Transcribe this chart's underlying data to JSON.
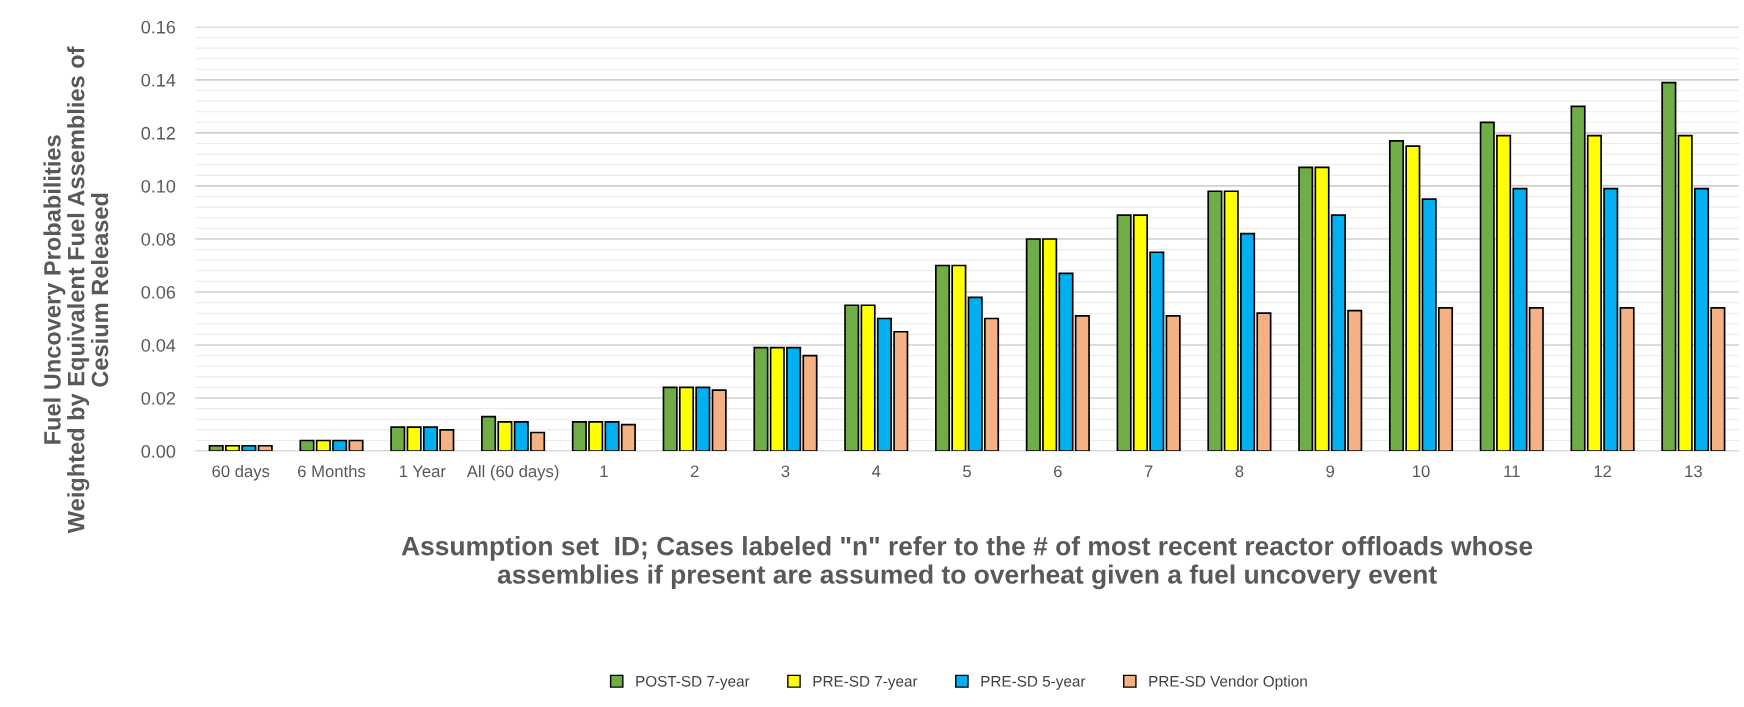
{
  "chart_data": {
    "type": "bar",
    "xlabel": "Assumption set  ID; Cases labeled \"n\" refer to the # of most recent reactor offloads whose\nassemblies if present are assumed to overheat given a fuel uncovery event",
    "ylabel": "Fuel Uncovery Probabilities\nWeighted by Equivalent Fuel Assemblies of\nCesium Released",
    "categories": [
      "60 days",
      "6 Months",
      "1 Year",
      "All (60 days)",
      "1",
      "2",
      "3",
      "4",
      "5",
      "6",
      "7",
      "8",
      "9",
      "10",
      "11",
      "12",
      "13"
    ],
    "series": [
      {
        "name": "POST-SD 7-year",
        "color": "#70ad47",
        "values": [
          0.002,
          0.004,
          0.009,
          0.013,
          0.011,
          0.024,
          0.039,
          0.055,
          0.07,
          0.08,
          0.089,
          0.098,
          0.107,
          0.117,
          0.124,
          0.13,
          0.139
        ]
      },
      {
        "name": "PRE-SD 7-year",
        "color": "#ffff00",
        "values": [
          0.002,
          0.004,
          0.009,
          0.011,
          0.011,
          0.024,
          0.039,
          0.055,
          0.07,
          0.08,
          0.089,
          0.098,
          0.107,
          0.115,
          0.119,
          0.119,
          0.119
        ]
      },
      {
        "name": "PRE-SD 5-year",
        "color": "#00b0f0",
        "values": [
          0.002,
          0.004,
          0.009,
          0.011,
          0.011,
          0.024,
          0.039,
          0.05,
          0.058,
          0.067,
          0.075,
          0.082,
          0.089,
          0.095,
          0.099,
          0.099,
          0.099
        ]
      },
      {
        "name": "PRE-SD Vendor Option",
        "color": "#f4b183",
        "values": [
          0.002,
          0.004,
          0.008,
          0.007,
          0.01,
          0.023,
          0.036,
          0.045,
          0.05,
          0.051,
          0.051,
          0.052,
          0.053,
          0.054,
          0.054,
          0.054,
          0.054
        ]
      }
    ],
    "ylim": [
      0,
      0.16
    ],
    "yticks": [
      {
        "value": 0,
        "label": "0.00"
      },
      {
        "value": 0.004,
        "label": null
      },
      {
        "value": 0.008,
        "label": null
      },
      {
        "value": 0.012,
        "label": null
      },
      {
        "value": 0.016,
        "label": null
      },
      {
        "value": 0.02,
        "label": "0.02"
      },
      {
        "value": 0.024,
        "label": null
      },
      {
        "value": 0.028,
        "label": null
      },
      {
        "value": 0.032,
        "label": null
      },
      {
        "value": 0.036,
        "label": null
      },
      {
        "value": 0.04,
        "label": "0.04"
      },
      {
        "value": 0.044,
        "label": null
      },
      {
        "value": 0.048,
        "label": null
      },
      {
        "value": 0.052,
        "label": null
      },
      {
        "value": 0.056,
        "label": null
      },
      {
        "value": 0.06,
        "label": "0.06"
      },
      {
        "value": 0.064,
        "label": null
      },
      {
        "value": 0.068,
        "label": null
      },
      {
        "value": 0.072,
        "label": null
      },
      {
        "value": 0.076,
        "label": null
      },
      {
        "value": 0.08,
        "label": "0.08"
      },
      {
        "value": 0.084,
        "label": null
      },
      {
        "value": 0.088,
        "label": null
      },
      {
        "value": 0.092,
        "label": null
      },
      {
        "value": 0.096,
        "label": null
      },
      {
        "value": 0.1,
        "label": "0.10"
      },
      {
        "value": 0.104,
        "label": null
      },
      {
        "value": 0.108,
        "label": null
      },
      {
        "value": 0.112,
        "label": null
      },
      {
        "value": 0.116,
        "label": null
      },
      {
        "value": 0.12,
        "label": "0.12"
      },
      {
        "value": 0.124,
        "label": null
      },
      {
        "value": 0.128,
        "label": null
      },
      {
        "value": 0.132,
        "label": null
      },
      {
        "value": 0.136,
        "label": null
      },
      {
        "value": 0.14,
        "label": "0.14"
      },
      {
        "value": 0.144,
        "label": null
      },
      {
        "value": 0.148,
        "label": null
      },
      {
        "value": 0.152,
        "label": null
      },
      {
        "value": 0.156,
        "label": null
      },
      {
        "value": 0.16,
        "label": "0.16"
      }
    ],
    "grid": "y",
    "legend": "bottom"
  }
}
